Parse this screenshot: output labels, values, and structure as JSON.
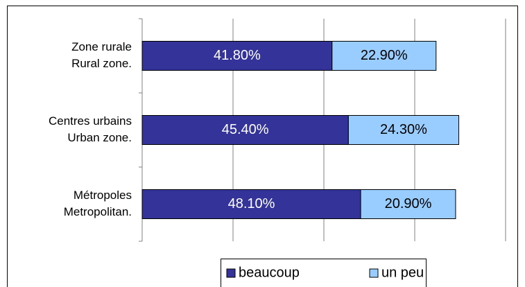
{
  "chart_data": {
    "type": "stacked-bar-horizontal",
    "categories": [
      [
        "Zone rurale",
        "Rural zone."
      ],
      [
        "Centres urbains",
        "Urban zone."
      ],
      [
        "Métropoles",
        "Metropolitan."
      ]
    ],
    "series": [
      {
        "name": "beaucoup",
        "color": "#333399",
        "values": [
          41.8,
          45.4,
          48.1
        ],
        "value_labels": [
          "41.80%",
          "45.40%",
          "48.10%"
        ]
      },
      {
        "name": "un peu",
        "color": "#99ccff",
        "values": [
          22.9,
          24.3,
          20.9
        ],
        "value_labels": [
          "22.90%",
          "24.30%",
          "20.90%"
        ]
      }
    ],
    "xlim": [
      0,
      80
    ],
    "xticks": [
      0,
      20,
      40,
      60,
      80
    ],
    "grid": true,
    "legend": "bottom"
  }
}
